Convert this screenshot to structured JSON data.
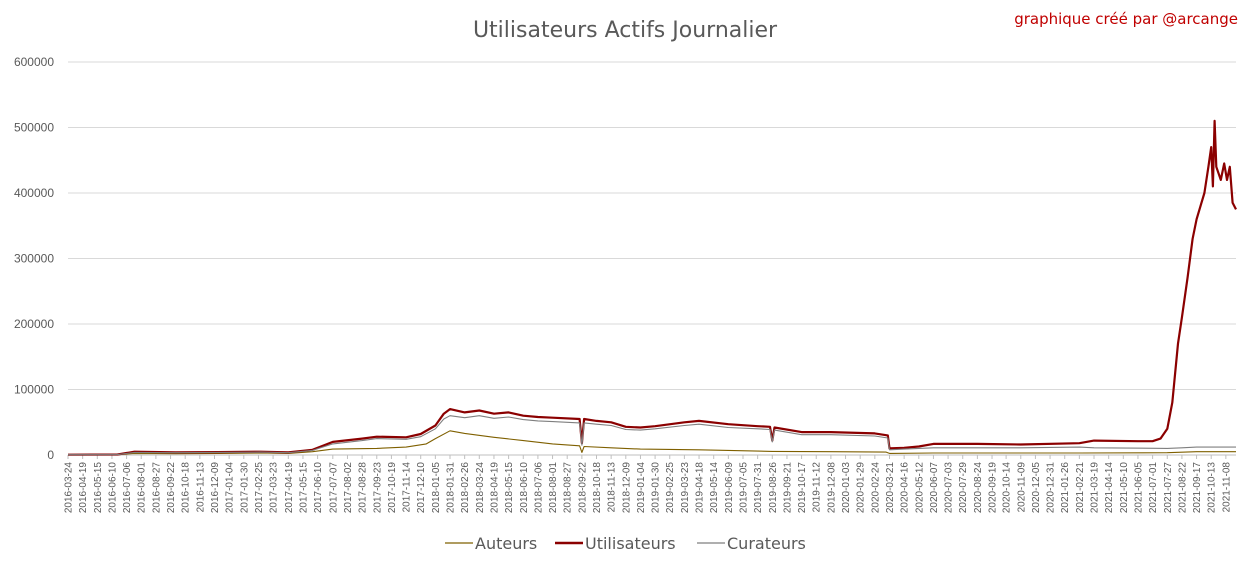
{
  "chart_data": {
    "type": "line",
    "title": "Utilisateurs Actifs Journalier",
    "credit": "graphique créé par @arcange",
    "ylim": [
      0,
      600000
    ],
    "y_ticks": [
      "0",
      "100000",
      "200000",
      "300000",
      "400000",
      "500000",
      "600000"
    ],
    "x_start": "2016-03-24",
    "x_end": "2021-11-26",
    "x_ticks": [
      "2016-03-24",
      "2016-04-19",
      "2016-05-15",
      "2016-06-10",
      "2016-07-06",
      "2016-08-01",
      "2016-08-27",
      "2016-09-22",
      "2016-10-18",
      "2016-11-13",
      "2016-12-09",
      "2017-01-04",
      "2017-01-30",
      "2017-02-25",
      "2017-03-23",
      "2017-04-19",
      "2017-05-15",
      "2017-06-10",
      "2017-07-07",
      "2017-08-02",
      "2017-08-28",
      "2017-09-23",
      "2017-10-19",
      "2017-11-14",
      "2017-12-10",
      "2018-01-05",
      "2018-01-31",
      "2018-02-26",
      "2018-03-24",
      "2018-04-19",
      "2018-05-15",
      "2018-06-10",
      "2018-07-06",
      "2018-08-01",
      "2018-08-27",
      "2018-09-22",
      "2018-10-18",
      "2018-11-13",
      "2018-12-09",
      "2019-01-04",
      "2019-01-30",
      "2019-02-25",
      "2019-03-23",
      "2019-04-18",
      "2019-05-14",
      "2019-06-09",
      "2019-07-05",
      "2019-07-31",
      "2019-08-26",
      "2019-09-21",
      "2019-10-17",
      "2019-11-12",
      "2019-12-08",
      "2020-01-03",
      "2020-01-29",
      "2020-02-24",
      "2020-03-21",
      "2020-04-16",
      "2020-05-12",
      "2020-06-07",
      "2020-07-03",
      "2020-07-29",
      "2020-08-24",
      "2020-09-19",
      "2020-10-14",
      "2020-11-09",
      "2020-12-05",
      "2020-12-31",
      "2021-01-26",
      "2021-02-21",
      "2021-03-19",
      "2021-04-14",
      "2021-05-10",
      "2021-06-05",
      "2021-07-01",
      "2021-07-27",
      "2021-08-22",
      "2021-09-17",
      "2021-10-13",
      "2021-11-08"
    ],
    "legend_position": "bottom",
    "grid": true,
    "series": [
      {
        "name": "Auteurs",
        "color": "#7f6000",
        "points": [
          [
            "2016-03-24",
            200
          ],
          [
            "2016-06-20",
            400
          ],
          [
            "2016-07-20",
            2500
          ],
          [
            "2016-10-01",
            2000
          ],
          [
            "2016-12-15",
            2500
          ],
          [
            "2017-03-01",
            3000
          ],
          [
            "2017-04-19",
            2500
          ],
          [
            "2017-06-01",
            5000
          ],
          [
            "2017-07-07",
            9000
          ],
          [
            "2017-09-23",
            10000
          ],
          [
            "2017-11-14",
            12000
          ],
          [
            "2017-12-20",
            17000
          ],
          [
            "2018-01-05",
            25000
          ],
          [
            "2018-01-31",
            37000
          ],
          [
            "2018-02-26",
            33000
          ],
          [
            "2018-04-19",
            27000
          ],
          [
            "2018-06-10",
            22000
          ],
          [
            "2018-08-01",
            17000
          ],
          [
            "2018-09-18",
            14000
          ],
          [
            "2018-09-22",
            4000
          ],
          [
            "2018-09-26",
            13000
          ],
          [
            "2018-11-13",
            11000
          ],
          [
            "2019-01-04",
            9000
          ],
          [
            "2019-04-18",
            8000
          ],
          [
            "2019-07-31",
            6000
          ],
          [
            "2019-08-26",
            5500
          ],
          [
            "2019-12-08",
            5000
          ],
          [
            "2020-03-15",
            4500
          ],
          [
            "2020-03-21",
            2500
          ],
          [
            "2020-06-07",
            3000
          ],
          [
            "2021-02-21",
            3000
          ],
          [
            "2021-07-27",
            3500
          ],
          [
            "2021-09-17",
            5000
          ],
          [
            "2021-11-26",
            5000
          ]
        ]
      },
      {
        "name": "Utilisateurs",
        "color": "#8b0000",
        "points": [
          [
            "2016-03-24",
            500
          ],
          [
            "2016-06-20",
            800
          ],
          [
            "2016-07-20",
            5000
          ],
          [
            "2016-10-01",
            4000
          ],
          [
            "2016-12-15",
            4500
          ],
          [
            "2017-03-01",
            5000
          ],
          [
            "2017-04-19",
            4000
          ],
          [
            "2017-06-01",
            8000
          ],
          [
            "2017-07-07",
            20000
          ],
          [
            "2017-08-28",
            25000
          ],
          [
            "2017-09-23",
            28000
          ],
          [
            "2017-11-14",
            27000
          ],
          [
            "2017-12-10",
            32000
          ],
          [
            "2018-01-05",
            45000
          ],
          [
            "2018-01-20",
            63000
          ],
          [
            "2018-01-31",
            70000
          ],
          [
            "2018-02-26",
            65000
          ],
          [
            "2018-03-24",
            68000
          ],
          [
            "2018-04-19",
            63000
          ],
          [
            "2018-05-15",
            65000
          ],
          [
            "2018-06-10",
            60000
          ],
          [
            "2018-07-06",
            58000
          ],
          [
            "2018-08-01",
            57000
          ],
          [
            "2018-09-18",
            55000
          ],
          [
            "2018-09-22",
            18000
          ],
          [
            "2018-09-26",
            55000
          ],
          [
            "2018-10-18",
            52000
          ],
          [
            "2018-11-13",
            50000
          ],
          [
            "2018-12-09",
            43000
          ],
          [
            "2019-01-04",
            42000
          ],
          [
            "2019-01-30",
            44000
          ],
          [
            "2019-03-23",
            50000
          ],
          [
            "2019-04-18",
            52000
          ],
          [
            "2019-06-09",
            47000
          ],
          [
            "2019-07-31",
            44000
          ],
          [
            "2019-08-22",
            43000
          ],
          [
            "2019-08-26",
            22000
          ],
          [
            "2019-08-30",
            42000
          ],
          [
            "2019-10-17",
            35000
          ],
          [
            "2019-12-08",
            35000
          ],
          [
            "2020-02-24",
            33000
          ],
          [
            "2020-03-18",
            30000
          ],
          [
            "2020-03-21",
            10000
          ],
          [
            "2020-04-16",
            11000
          ],
          [
            "2020-05-12",
            13000
          ],
          [
            "2020-06-07",
            17000
          ],
          [
            "2020-08-24",
            17000
          ],
          [
            "2020-11-09",
            16000
          ],
          [
            "2021-02-21",
            18000
          ],
          [
            "2021-03-19",
            22000
          ],
          [
            "2021-06-05",
            21000
          ],
          [
            "2021-07-01",
            21000
          ],
          [
            "2021-07-15",
            25000
          ],
          [
            "2021-07-27",
            40000
          ],
          [
            "2021-08-05",
            80000
          ],
          [
            "2021-08-15",
            170000
          ],
          [
            "2021-08-22",
            210000
          ],
          [
            "2021-09-01",
            270000
          ],
          [
            "2021-09-10",
            330000
          ],
          [
            "2021-09-17",
            360000
          ],
          [
            "2021-09-24",
            380000
          ],
          [
            "2021-10-01",
            400000
          ],
          [
            "2021-10-08",
            440000
          ],
          [
            "2021-10-13",
            470000
          ],
          [
            "2021-10-16",
            410000
          ],
          [
            "2021-10-19",
            510000
          ],
          [
            "2021-10-22",
            440000
          ],
          [
            "2021-10-30",
            420000
          ],
          [
            "2021-11-05",
            445000
          ],
          [
            "2021-11-10",
            420000
          ],
          [
            "2021-11-15",
            440000
          ],
          [
            "2021-11-20",
            385000
          ],
          [
            "2021-11-26",
            375000
          ]
        ]
      },
      {
        "name": "Curateurs",
        "color": "#7f7f7f",
        "points": [
          [
            "2016-03-24",
            400
          ],
          [
            "2016-06-20",
            600
          ],
          [
            "2016-07-20",
            4000
          ],
          [
            "2016-10-01",
            3500
          ],
          [
            "2016-12-15",
            4000
          ],
          [
            "2017-03-01",
            4500
          ],
          [
            "2017-04-19",
            3500
          ],
          [
            "2017-06-01",
            7000
          ],
          [
            "2017-07-07",
            17000
          ],
          [
            "2017-08-28",
            22000
          ],
          [
            "2017-09-23",
            25000
          ],
          [
            "2017-11-14",
            24000
          ],
          [
            "2017-12-10",
            28000
          ],
          [
            "2018-01-05",
            40000
          ],
          [
            "2018-01-20",
            55000
          ],
          [
            "2018-01-31",
            60000
          ],
          [
            "2018-02-26",
            57000
          ],
          [
            "2018-03-24",
            60000
          ],
          [
            "2018-04-19",
            56000
          ],
          [
            "2018-05-15",
            58000
          ],
          [
            "2018-06-10",
            54000
          ],
          [
            "2018-07-06",
            52000
          ],
          [
            "2018-08-01",
            51000
          ],
          [
            "2018-09-18",
            49000
          ],
          [
            "2018-09-22",
            15000
          ],
          [
            "2018-09-26",
            49000
          ],
          [
            "2018-10-18",
            47000
          ],
          [
            "2018-11-13",
            45000
          ],
          [
            "2018-12-09",
            39000
          ],
          [
            "2019-01-04",
            38000
          ],
          [
            "2019-01-30",
            40000
          ],
          [
            "2019-03-23",
            45000
          ],
          [
            "2019-04-18",
            47000
          ],
          [
            "2019-06-09",
            42000
          ],
          [
            "2019-07-31",
            40000
          ],
          [
            "2019-08-22",
            39000
          ],
          [
            "2019-08-26",
            20000
          ],
          [
            "2019-08-30",
            38000
          ],
          [
            "2019-10-17",
            31000
          ],
          [
            "2019-12-08",
            31000
          ],
          [
            "2020-02-24",
            29000
          ],
          [
            "2020-03-18",
            26000
          ],
          [
            "2020-03-21",
            8000
          ],
          [
            "2020-04-16",
            9000
          ],
          [
            "2020-05-12",
            10000
          ],
          [
            "2020-06-07",
            11000
          ],
          [
            "2020-08-24",
            11000
          ],
          [
            "2020-11-09",
            11000
          ],
          [
            "2021-02-21",
            12000
          ],
          [
            "2021-03-19",
            11000
          ],
          [
            "2021-07-27",
            10000
          ],
          [
            "2021-08-22",
            11000
          ],
          [
            "2021-09-17",
            12000
          ],
          [
            "2021-11-26",
            12000
          ]
        ]
      }
    ]
  }
}
